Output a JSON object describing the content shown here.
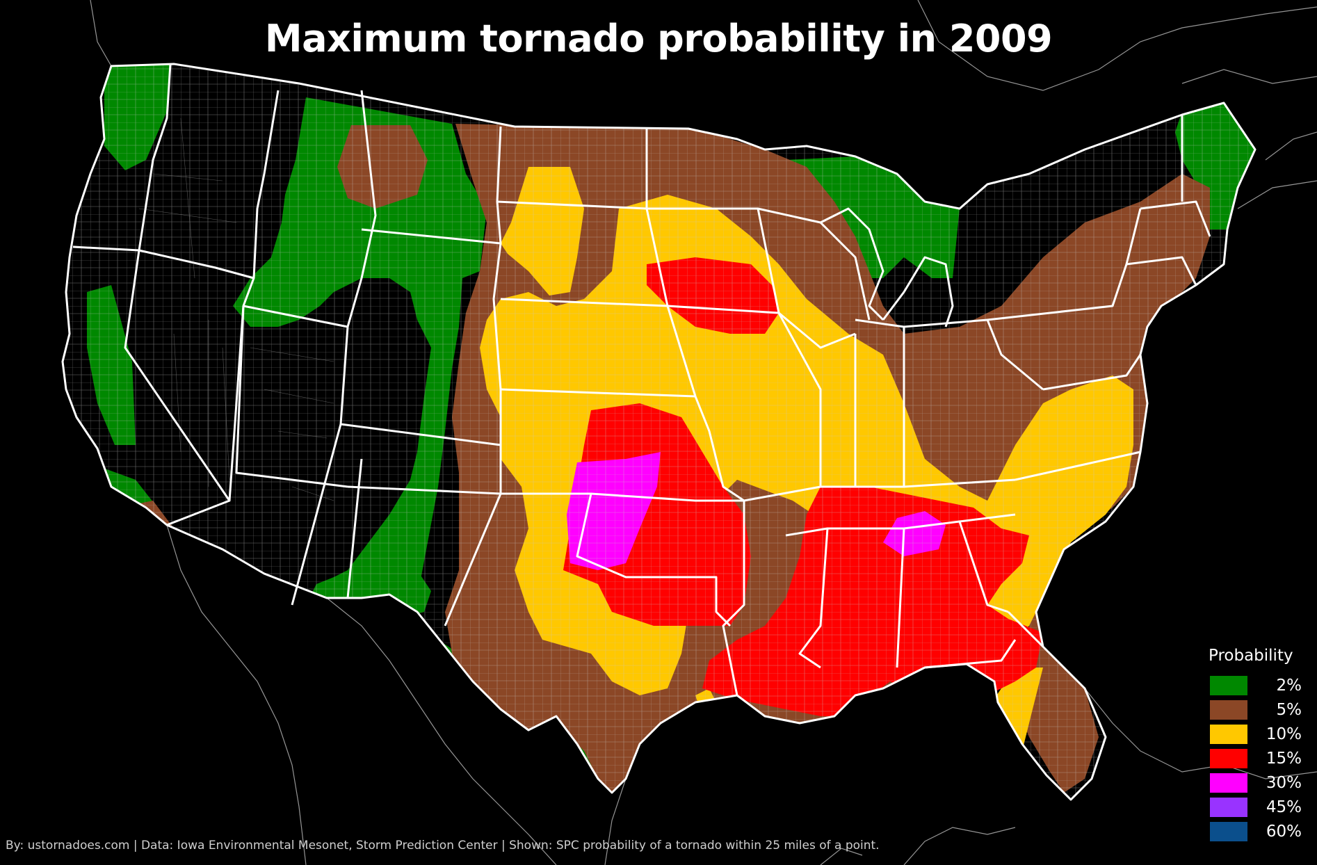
{
  "title": "Maximum tornado probability in 2009",
  "legend": {
    "title": "Probability",
    "items": [
      {
        "label": "2%",
        "color": "#008800"
      },
      {
        "label": "5%",
        "color": "#8b4726"
      },
      {
        "label": "10%",
        "color": "#ffc800"
      },
      {
        "label": "15%",
        "color": "#ff0000"
      },
      {
        "label": "30%",
        "color": "#ff00ff"
      },
      {
        "label": "45%",
        "color": "#9933ff"
      },
      {
        "label": "60%",
        "color": "#0b4f8c"
      }
    ]
  },
  "credits": "By: ustornadoes.com | Data: Iowa Environmental Mesonet, Storm Prediction Center | Shown: SPC probability of a tornado within 25 miles of a point.",
  "colors": {
    "background": "#000000",
    "borders": "#ffffff",
    "counties": "#c8c8c8"
  }
}
